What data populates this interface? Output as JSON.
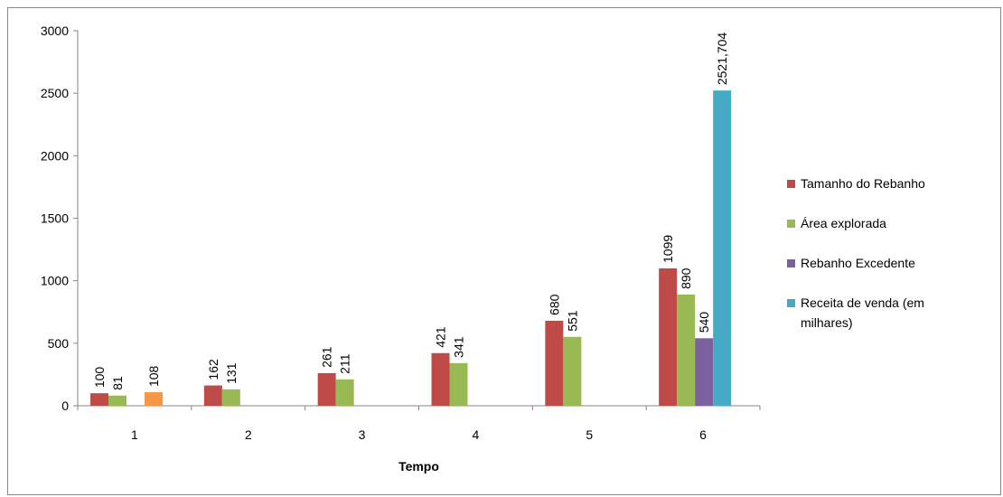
{
  "chart_data": {
    "type": "bar",
    "title": "",
    "xlabel": "Tempo",
    "ylabel": "",
    "ylim": [
      0,
      3000
    ],
    "yticks": [
      0,
      500,
      1000,
      1500,
      2000,
      2500,
      3000
    ],
    "categories": [
      "1",
      "2",
      "3",
      "4",
      "5",
      "6"
    ],
    "legend_position": "right",
    "grid": false,
    "series": [
      {
        "name": "Tamanho do Rebanho",
        "color": "#BE4B48",
        "values": [
          100,
          162,
          261,
          421,
          680,
          1099
        ],
        "labels": [
          "100",
          "162",
          "261",
          "421",
          "680",
          "1099"
        ]
      },
      {
        "name": "Área explorada",
        "color": "#98B954",
        "values": [
          81,
          131,
          211,
          341,
          551,
          890
        ],
        "labels": [
          "81",
          "131",
          "211",
          "341",
          "551",
          "890"
        ]
      },
      {
        "name": "Rebanho Excedente",
        "color": "#7D60A0",
        "values": [
          null,
          null,
          null,
          null,
          null,
          540
        ],
        "labels": [
          null,
          null,
          null,
          null,
          null,
          "540"
        ]
      },
      {
        "name": "Receita de venda (em milhares)",
        "color": "#46AAC5",
        "values": [
          null,
          null,
          null,
          null,
          null,
          2521.704
        ],
        "labels": [
          null,
          null,
          null,
          null,
          null,
          "2521,704"
        ]
      }
    ],
    "extra_bars": [
      {
        "category": "1",
        "slot": 3,
        "value": 108,
        "label": "108",
        "color": "#F79646"
      }
    ]
  }
}
